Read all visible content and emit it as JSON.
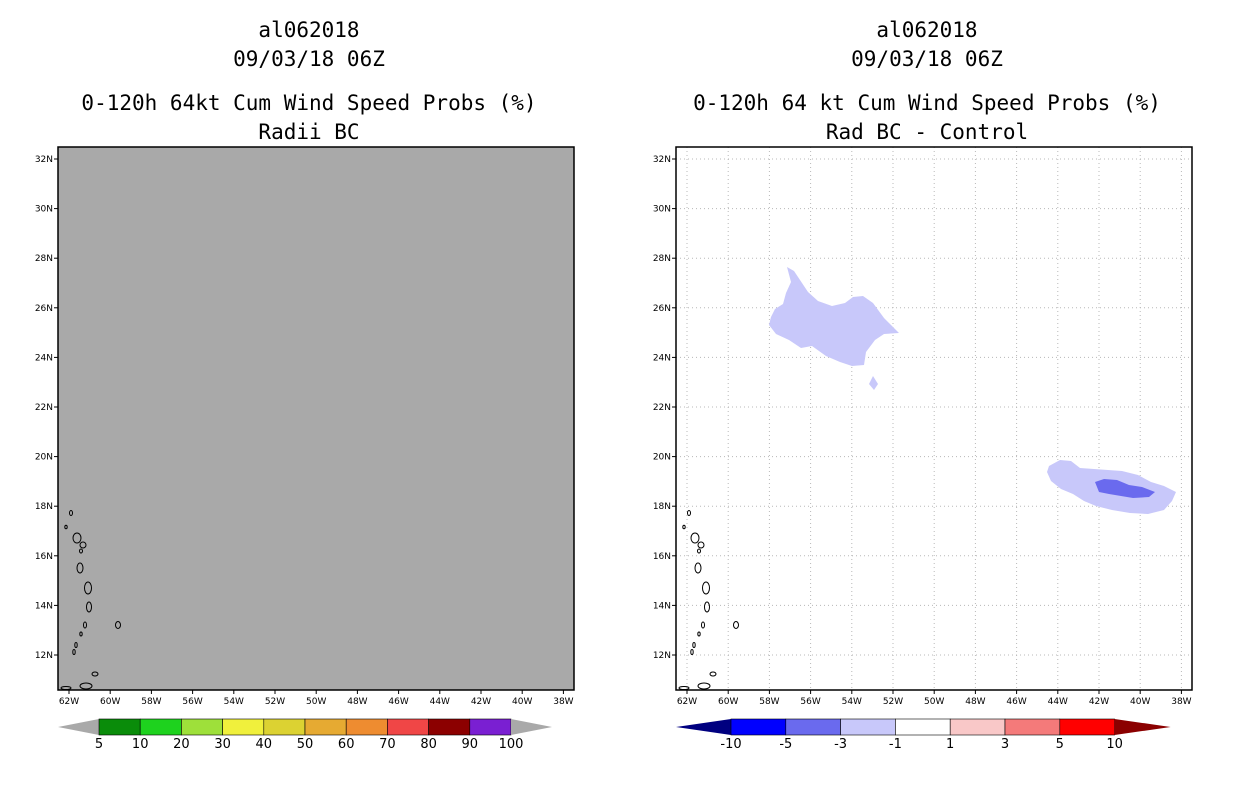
{
  "left_panel": {
    "storm_id": "al062018",
    "datetime": "09/03/18 06Z",
    "product": "0-120h 64kt Cum Wind Speed Probs (%)",
    "subtitle": "Radii BC",
    "background_color": "#a9a9a9",
    "colorbar": {
      "labels": [
        "5",
        "10",
        "20",
        "30",
        "40",
        "50",
        "60",
        "70",
        "80",
        "90",
        "100"
      ],
      "colors": [
        "#0a8c0a",
        "#1ed21e",
        "#9ee03a",
        "#f0f03c",
        "#dcd232",
        "#e6aa32",
        "#ee8c30",
        "#f04646",
        "#8c0000",
        "#7a1fd2"
      ],
      "end_color": "#a9a9a9"
    }
  },
  "right_panel": {
    "storm_id": "al062018",
    "datetime": "09/03/18 06Z",
    "product": "0-120h 64 kt Cum Wind Speed Probs (%)",
    "subtitle": "Rad BC - Control",
    "colorbar": {
      "labels": [
        "-10",
        "-5",
        "-3",
        "-1",
        "1",
        "3",
        "5",
        "10"
      ],
      "colors": [
        "#0000ff",
        "#6a6aee",
        "#c8c8fa",
        "#ffffff",
        "#f9c8c8",
        "#f47a7a",
        "#ff0000"
      ],
      "low_end_color": "#000080",
      "high_end_color": "#8b0000"
    },
    "contours": [
      {
        "name": "north-light-blue-region",
        "level": "-3 to -1",
        "color": "#c8c8fa"
      },
      {
        "name": "north-small-blob",
        "level": "-3 to -1",
        "color": "#c8c8fa"
      },
      {
        "name": "east-light-blue-region",
        "level": "-3 to -1",
        "color": "#c8c8fa"
      },
      {
        "name": "east-medium-blue-core",
        "level": "-5 to -3",
        "color": "#6a6aee"
      }
    ]
  },
  "axes": {
    "lat_labels": [
      "12N",
      "14N",
      "16N",
      "18N",
      "20N",
      "22N",
      "24N",
      "26N",
      "28N",
      "30N",
      "32N"
    ],
    "lon_labels": [
      "62W",
      "60W",
      "58W",
      "56W",
      "54W",
      "52W",
      "50W",
      "48W",
      "46W",
      "44W",
      "42W",
      "40W",
      "38W"
    ]
  }
}
